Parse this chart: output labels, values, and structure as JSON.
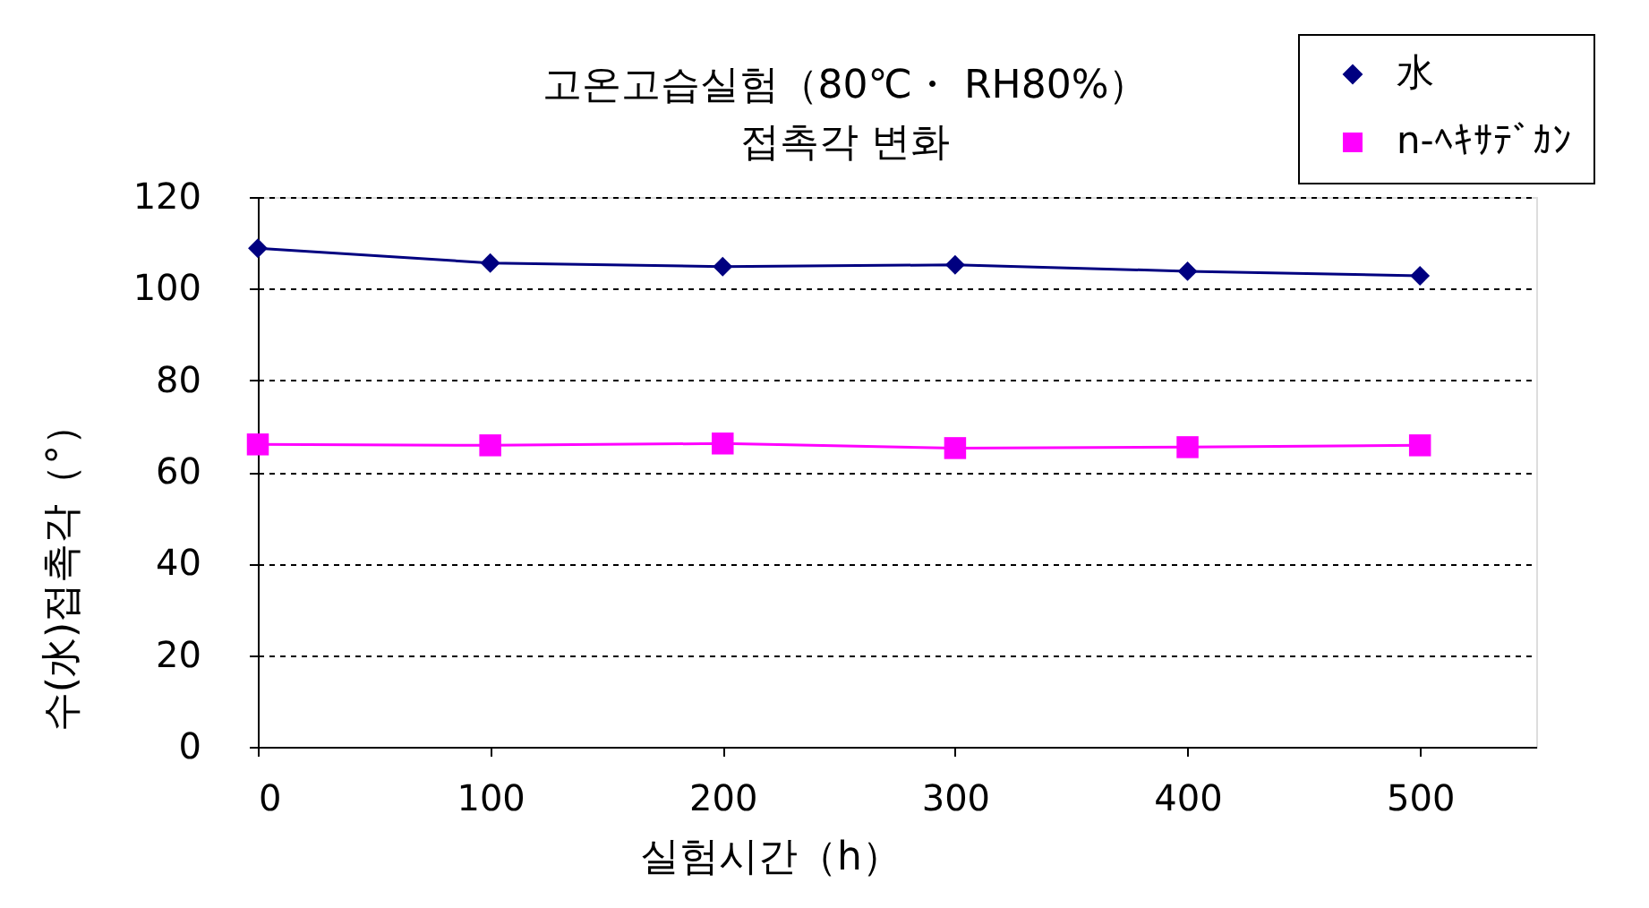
{
  "chart_data": {
    "type": "line",
    "title": "고온고습실험（80℃・ RH80%）",
    "subtitle": "접촉각 변화",
    "xlabel": "실험시간（h）",
    "ylabel": "수(水)접촉각（°）",
    "x": [
      0,
      100,
      200,
      300,
      400,
      500
    ],
    "series": [
      {
        "name": "水",
        "color": "#000080",
        "marker": "diamond",
        "values": [
          108.8,
          105.6,
          104.8,
          105.2,
          103.8,
          102.8
        ]
      },
      {
        "name": "n-ﾍｷｻﾃﾞｶﾝ",
        "color": "#ff00ff",
        "marker": "square",
        "values": [
          66.0,
          65.8,
          66.2,
          65.2,
          65.4,
          65.8
        ]
      }
    ],
    "xlim": [
      0,
      550
    ],
    "xticks": [
      0,
      100,
      200,
      300,
      400,
      500
    ],
    "ylim": [
      0,
      120
    ],
    "yticks": [
      0,
      20,
      40,
      60,
      80,
      100,
      120
    ],
    "grid": "y",
    "legend": "top right",
    "line_style": "solid"
  }
}
